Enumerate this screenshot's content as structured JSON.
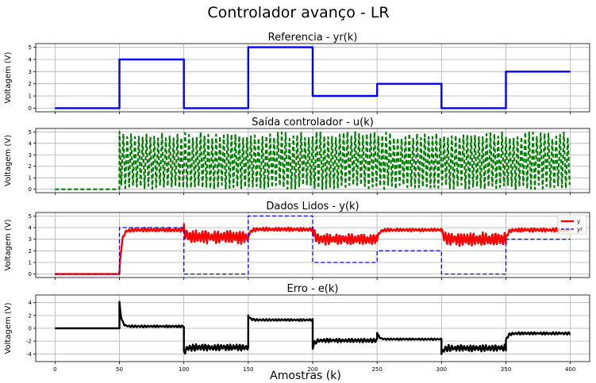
{
  "suptitle": "Controlador avanço - LR",
  "xlabel": "Amostras (k)",
  "chart_data": [
    {
      "type": "line",
      "title": "Referencia - yr(k)",
      "ylabel": "Voltagem (V)",
      "xlim": [
        -15,
        415
      ],
      "ylim": [
        -0.3,
        5.3
      ],
      "yticks": [
        0,
        1,
        2,
        3,
        4,
        5
      ],
      "grid": true,
      "series": [
        {
          "color": "#0000ff",
          "style": "solid",
          "kind": "step",
          "x": [
            0,
            50,
            50,
            100,
            100,
            150,
            150,
            200,
            200,
            250,
            250,
            300,
            300,
            350,
            350,
            400
          ],
          "y": [
            0,
            0,
            4,
            4,
            0,
            0,
            5,
            5,
            1,
            1,
            2,
            2,
            0,
            0,
            3,
            3
          ]
        }
      ]
    },
    {
      "type": "line",
      "title": "Saída controlador - u(k)",
      "ylabel": "Voltagem (V)",
      "xlim": [
        -15,
        415
      ],
      "ylim": [
        -0.3,
        5.3
      ],
      "yticks": [
        0,
        1,
        2,
        3,
        4,
        5
      ],
      "grid": true,
      "series": [
        {
          "color": "#008000",
          "style": "dashed",
          "kind": "switching",
          "x_start": 0,
          "x_switch": 50,
          "x_end": 400,
          "low": 0,
          "high": 5
        }
      ]
    },
    {
      "type": "line",
      "title": "Dados Lidos - y(k)",
      "ylabel": "Voltagem (V)",
      "xlim": [
        -15,
        415
      ],
      "ylim": [
        -0.3,
        5.3
      ],
      "yticks": [
        0,
        1,
        2,
        3,
        4,
        5
      ],
      "grid": true,
      "legend": {
        "placement": "top-right",
        "entries": [
          "y",
          "yr"
        ]
      },
      "series": [
        {
          "name": "y",
          "color": "#ff0000",
          "style": "solid",
          "kind": "response",
          "segments": [
            {
              "x0": 0,
              "x1": 50,
              "level": 0,
              "osc": 0
            },
            {
              "x0": 50,
              "x1": 100,
              "level": 3.8,
              "osc": 0.15
            },
            {
              "x0": 100,
              "x1": 150,
              "level": 3.2,
              "osc": 0.55
            },
            {
              "x0": 150,
              "x1": 200,
              "level": 3.85,
              "osc": 0.15
            },
            {
              "x0": 200,
              "x1": 250,
              "level": 3.0,
              "osc": 0.45
            },
            {
              "x0": 250,
              "x1": 300,
              "level": 3.8,
              "osc": 0.12
            },
            {
              "x0": 300,
              "x1": 350,
              "level": 3.0,
              "osc": 0.55
            },
            {
              "x0": 350,
              "x1": 400,
              "level": 3.8,
              "osc": 0.15
            }
          ]
        },
        {
          "name": "yr",
          "color": "#0000ff",
          "style": "dashed",
          "kind": "step",
          "x": [
            0,
            50,
            50,
            100,
            100,
            150,
            150,
            200,
            200,
            250,
            250,
            300,
            300,
            350,
            350,
            400
          ],
          "y": [
            0,
            0,
            4,
            4,
            0,
            0,
            5,
            5,
            1,
            1,
            2,
            2,
            0,
            0,
            3,
            3
          ]
        }
      ]
    },
    {
      "type": "line",
      "title": "Erro - e(k)",
      "ylabel": "Voltagem (V)",
      "xlim": [
        -15,
        415
      ],
      "ylim": [
        -5.2,
        5.2
      ],
      "yticks": [
        -4,
        -2,
        0,
        2,
        4
      ],
      "xticks": [
        0,
        50,
        100,
        150,
        200,
        250,
        300,
        350,
        400
      ],
      "grid": true,
      "series": [
        {
          "color": "#000000",
          "style": "solid",
          "kind": "response",
          "segments": [
            {
              "x0": 0,
              "x1": 50,
              "level": 0,
              "osc": 0,
              "spike": 0
            },
            {
              "x0": 50,
              "x1": 100,
              "level": 0.3,
              "osc": 0.15,
              "spike": 4
            },
            {
              "x0": 100,
              "x1": 150,
              "level": -3.0,
              "osc": 0.5,
              "spike": -4
            },
            {
              "x0": 150,
              "x1": 200,
              "level": 1.3,
              "osc": 0.15,
              "spike": 2
            },
            {
              "x0": 200,
              "x1": 250,
              "level": -1.9,
              "osc": 0.3,
              "spike": -3
            },
            {
              "x0": 250,
              "x1": 300,
              "level": -1.7,
              "osc": 0.12,
              "spike": -0.6
            },
            {
              "x0": 300,
              "x1": 350,
              "level": -3.1,
              "osc": 0.5,
              "spike": -3.9
            },
            {
              "x0": 350,
              "x1": 400,
              "level": -0.8,
              "osc": 0.2,
              "spike": -2
            }
          ]
        }
      ]
    }
  ]
}
